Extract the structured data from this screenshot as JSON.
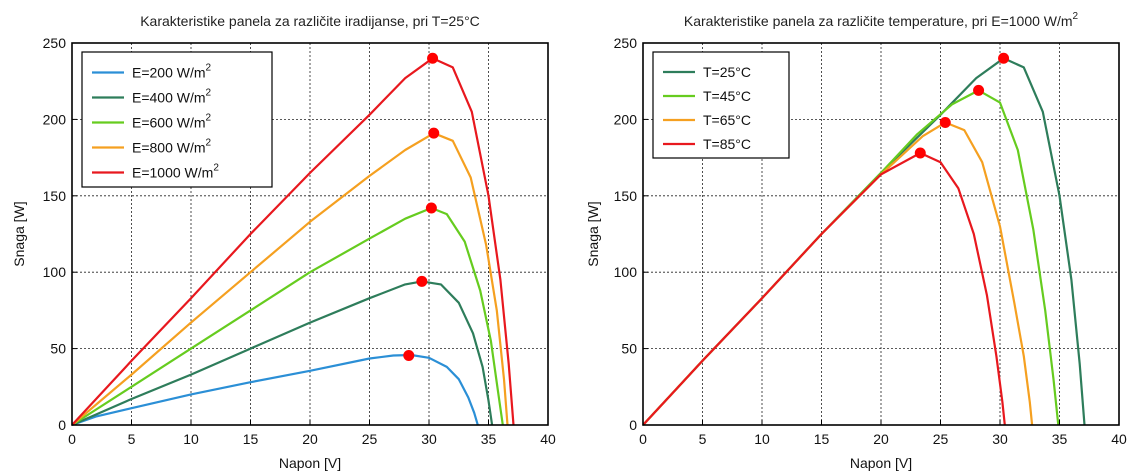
{
  "chart_data": [
    {
      "type": "line",
      "title": "Karakteristike panela za različite iradijanse, pri T=25°C",
      "xlabel": "Napon [V]",
      "ylabel": "Snaga [W]",
      "xlim": [
        0,
        40
      ],
      "ylim": [
        0,
        250
      ],
      "xticks": [
        "0",
        "5",
        "10",
        "15",
        "20",
        "25",
        "30",
        "35",
        "40"
      ],
      "yticks": [
        "0",
        "50",
        "100",
        "150",
        "200",
        "250"
      ],
      "grid": true,
      "legend_position": "top-left",
      "series": [
        {
          "name": "E=200 W/m",
          "name_sup": "2",
          "color": "#2b8fd6",
          "x": [
            0,
            2,
            5,
            10,
            15,
            20,
            25,
            27,
            28.5,
            30,
            31.5,
            32.5,
            33.3,
            33.8,
            34.1
          ],
          "y": [
            0,
            5.5,
            11,
            20,
            28,
            35.5,
            43.5,
            45.5,
            45.8,
            44,
            38,
            30,
            18,
            8,
            0
          ],
          "mpp": [
            28.3,
            45.5
          ]
        },
        {
          "name": "E=400 W/m",
          "name_sup": "2",
          "color": "#2e7d5b",
          "x": [
            0,
            5,
            10,
            15,
            20,
            25,
            28,
            29.4,
            31,
            32.5,
            33.7,
            34.5,
            35,
            35.3
          ],
          "y": [
            0,
            17,
            33,
            50,
            67,
            83,
            92,
            94,
            92,
            80,
            60,
            38,
            16,
            0
          ],
          "mpp": [
            29.4,
            94
          ]
        },
        {
          "name": "E=600 W/m",
          "name_sup": "2",
          "color": "#66cc1f",
          "x": [
            0,
            5,
            10,
            15,
            20,
            25,
            28,
            30.2,
            31.5,
            33,
            34.3,
            35.2,
            35.8,
            36.2
          ],
          "y": [
            0,
            25,
            50,
            75,
            100,
            122,
            135,
            142,
            138,
            120,
            88,
            55,
            22,
            0
          ],
          "mpp": [
            30.2,
            142
          ]
        },
        {
          "name": "E=800 W/m",
          "name_sup": "2",
          "color": "#f5a020",
          "x": [
            0,
            5,
            10,
            15,
            20,
            25,
            28,
            30.4,
            32,
            33.5,
            34.8,
            35.7,
            36.3,
            36.6
          ],
          "y": [
            0,
            33,
            67,
            100,
            133,
            163,
            180,
            191,
            186,
            162,
            118,
            75,
            30,
            0
          ],
          "mpp": [
            30.4,
            191
          ]
        },
        {
          "name": "E=1000 W/m",
          "name_sup": "2",
          "color": "#e8181e",
          "x": [
            0,
            5,
            10,
            15,
            20,
            25,
            28,
            30.3,
            32,
            33.6,
            35,
            36,
            36.7,
            37.1
          ],
          "y": [
            0,
            42,
            83,
            125,
            165,
            203,
            227,
            240,
            234,
            205,
            150,
            95,
            40,
            0
          ],
          "mpp": [
            30.3,
            240
          ]
        }
      ]
    },
    {
      "type": "line",
      "title": "Karakteristike panela za različite temperature, pri E=1000 W/m",
      "title_sup": "2",
      "xlabel": "Napon [V]",
      "ylabel": "Snaga [W]",
      "xlim": [
        0,
        40
      ],
      "ylim": [
        0,
        250
      ],
      "xticks": [
        "0",
        "5",
        "10",
        "15",
        "20",
        "25",
        "30",
        "35",
        "40"
      ],
      "yticks": [
        "0",
        "50",
        "100",
        "150",
        "200",
        "250"
      ],
      "grid": true,
      "legend_position": "top-left",
      "series": [
        {
          "name": "T=25°C",
          "color": "#2e7d5b",
          "x": [
            0,
            5,
            10,
            15,
            20,
            25,
            28,
            30.3,
            32,
            33.6,
            35,
            36,
            36.7,
            37.1
          ],
          "y": [
            0,
            42,
            83,
            125,
            165,
            203,
            227,
            240,
            234,
            205,
            150,
            95,
            40,
            0
          ],
          "mpp": [
            30.3,
            240
          ]
        },
        {
          "name": "T=45°C",
          "color": "#66cc1f",
          "x": [
            0,
            5,
            10,
            15,
            20,
            23,
            26,
            28.2,
            30,
            31.5,
            32.8,
            33.8,
            34.5,
            34.9
          ],
          "y": [
            0,
            42,
            83,
            125,
            165,
            190,
            210,
            219,
            211,
            180,
            128,
            75,
            30,
            0
          ],
          "mpp": [
            28.2,
            219
          ]
        },
        {
          "name": "T=65°C",
          "color": "#f5a020",
          "x": [
            0,
            5,
            10,
            15,
            20,
            23.5,
            25.4,
            27,
            28.5,
            30,
            31.2,
            32,
            32.5,
            32.7
          ],
          "y": [
            0,
            42,
            83,
            125,
            164,
            189,
            198,
            193,
            172,
            130,
            80,
            45,
            15,
            0
          ],
          "mpp": [
            25.4,
            198
          ]
        },
        {
          "name": "T=85°C",
          "color": "#e8181e",
          "x": [
            0,
            5,
            10,
            15,
            20,
            23.3,
            25,
            26.5,
            27.8,
            28.9,
            29.7,
            30.2,
            30.4
          ],
          "y": [
            0,
            42,
            83,
            125,
            164,
            178,
            172,
            155,
            125,
            85,
            45,
            15,
            0
          ],
          "mpp": [
            23.3,
            178
          ]
        }
      ]
    }
  ]
}
